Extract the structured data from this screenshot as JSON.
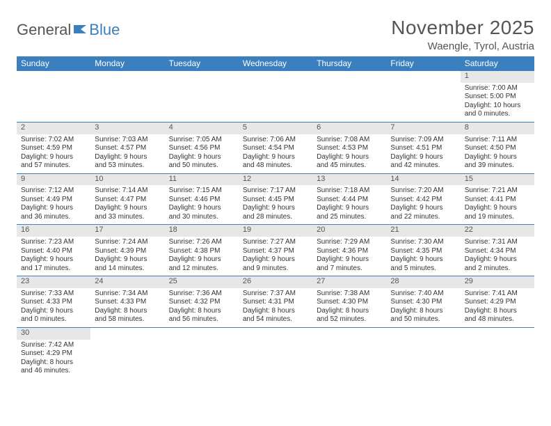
{
  "brand": {
    "general": "General",
    "blue": "Blue"
  },
  "title": "November 2025",
  "location": "Waengle, Tyrol, Austria",
  "colors": {
    "header_bg": "#3b7fbf",
    "header_text": "#ffffff",
    "daynum_bg": "#e7e7e7",
    "text": "#333333",
    "rule": "#3b7fbf"
  },
  "weekdays": [
    "Sunday",
    "Monday",
    "Tuesday",
    "Wednesday",
    "Thursday",
    "Friday",
    "Saturday"
  ],
  "weeks": [
    [
      null,
      null,
      null,
      null,
      null,
      null,
      {
        "n": "1",
        "sr": "Sunrise: 7:00 AM",
        "ss": "Sunset: 5:00 PM",
        "dl": "Daylight: 10 hours and 0 minutes."
      }
    ],
    [
      {
        "n": "2",
        "sr": "Sunrise: 7:02 AM",
        "ss": "Sunset: 4:59 PM",
        "dl": "Daylight: 9 hours and 57 minutes."
      },
      {
        "n": "3",
        "sr": "Sunrise: 7:03 AM",
        "ss": "Sunset: 4:57 PM",
        "dl": "Daylight: 9 hours and 53 minutes."
      },
      {
        "n": "4",
        "sr": "Sunrise: 7:05 AM",
        "ss": "Sunset: 4:56 PM",
        "dl": "Daylight: 9 hours and 50 minutes."
      },
      {
        "n": "5",
        "sr": "Sunrise: 7:06 AM",
        "ss": "Sunset: 4:54 PM",
        "dl": "Daylight: 9 hours and 48 minutes."
      },
      {
        "n": "6",
        "sr": "Sunrise: 7:08 AM",
        "ss": "Sunset: 4:53 PM",
        "dl": "Daylight: 9 hours and 45 minutes."
      },
      {
        "n": "7",
        "sr": "Sunrise: 7:09 AM",
        "ss": "Sunset: 4:51 PM",
        "dl": "Daylight: 9 hours and 42 minutes."
      },
      {
        "n": "8",
        "sr": "Sunrise: 7:11 AM",
        "ss": "Sunset: 4:50 PM",
        "dl": "Daylight: 9 hours and 39 minutes."
      }
    ],
    [
      {
        "n": "9",
        "sr": "Sunrise: 7:12 AM",
        "ss": "Sunset: 4:49 PM",
        "dl": "Daylight: 9 hours and 36 minutes."
      },
      {
        "n": "10",
        "sr": "Sunrise: 7:14 AM",
        "ss": "Sunset: 4:47 PM",
        "dl": "Daylight: 9 hours and 33 minutes."
      },
      {
        "n": "11",
        "sr": "Sunrise: 7:15 AM",
        "ss": "Sunset: 4:46 PM",
        "dl": "Daylight: 9 hours and 30 minutes."
      },
      {
        "n": "12",
        "sr": "Sunrise: 7:17 AM",
        "ss": "Sunset: 4:45 PM",
        "dl": "Daylight: 9 hours and 28 minutes."
      },
      {
        "n": "13",
        "sr": "Sunrise: 7:18 AM",
        "ss": "Sunset: 4:44 PM",
        "dl": "Daylight: 9 hours and 25 minutes."
      },
      {
        "n": "14",
        "sr": "Sunrise: 7:20 AM",
        "ss": "Sunset: 4:42 PM",
        "dl": "Daylight: 9 hours and 22 minutes."
      },
      {
        "n": "15",
        "sr": "Sunrise: 7:21 AM",
        "ss": "Sunset: 4:41 PM",
        "dl": "Daylight: 9 hours and 19 minutes."
      }
    ],
    [
      {
        "n": "16",
        "sr": "Sunrise: 7:23 AM",
        "ss": "Sunset: 4:40 PM",
        "dl": "Daylight: 9 hours and 17 minutes."
      },
      {
        "n": "17",
        "sr": "Sunrise: 7:24 AM",
        "ss": "Sunset: 4:39 PM",
        "dl": "Daylight: 9 hours and 14 minutes."
      },
      {
        "n": "18",
        "sr": "Sunrise: 7:26 AM",
        "ss": "Sunset: 4:38 PM",
        "dl": "Daylight: 9 hours and 12 minutes."
      },
      {
        "n": "19",
        "sr": "Sunrise: 7:27 AM",
        "ss": "Sunset: 4:37 PM",
        "dl": "Daylight: 9 hours and 9 minutes."
      },
      {
        "n": "20",
        "sr": "Sunrise: 7:29 AM",
        "ss": "Sunset: 4:36 PM",
        "dl": "Daylight: 9 hours and 7 minutes."
      },
      {
        "n": "21",
        "sr": "Sunrise: 7:30 AM",
        "ss": "Sunset: 4:35 PM",
        "dl": "Daylight: 9 hours and 5 minutes."
      },
      {
        "n": "22",
        "sr": "Sunrise: 7:31 AM",
        "ss": "Sunset: 4:34 PM",
        "dl": "Daylight: 9 hours and 2 minutes."
      }
    ],
    [
      {
        "n": "23",
        "sr": "Sunrise: 7:33 AM",
        "ss": "Sunset: 4:33 PM",
        "dl": "Daylight: 9 hours and 0 minutes."
      },
      {
        "n": "24",
        "sr": "Sunrise: 7:34 AM",
        "ss": "Sunset: 4:33 PM",
        "dl": "Daylight: 8 hours and 58 minutes."
      },
      {
        "n": "25",
        "sr": "Sunrise: 7:36 AM",
        "ss": "Sunset: 4:32 PM",
        "dl": "Daylight: 8 hours and 56 minutes."
      },
      {
        "n": "26",
        "sr": "Sunrise: 7:37 AM",
        "ss": "Sunset: 4:31 PM",
        "dl": "Daylight: 8 hours and 54 minutes."
      },
      {
        "n": "27",
        "sr": "Sunrise: 7:38 AM",
        "ss": "Sunset: 4:30 PM",
        "dl": "Daylight: 8 hours and 52 minutes."
      },
      {
        "n": "28",
        "sr": "Sunrise: 7:40 AM",
        "ss": "Sunset: 4:30 PM",
        "dl": "Daylight: 8 hours and 50 minutes."
      },
      {
        "n": "29",
        "sr": "Sunrise: 7:41 AM",
        "ss": "Sunset: 4:29 PM",
        "dl": "Daylight: 8 hours and 48 minutes."
      }
    ],
    [
      {
        "n": "30",
        "sr": "Sunrise: 7:42 AM",
        "ss": "Sunset: 4:29 PM",
        "dl": "Daylight: 8 hours and 46 minutes."
      },
      null,
      null,
      null,
      null,
      null,
      null
    ]
  ]
}
